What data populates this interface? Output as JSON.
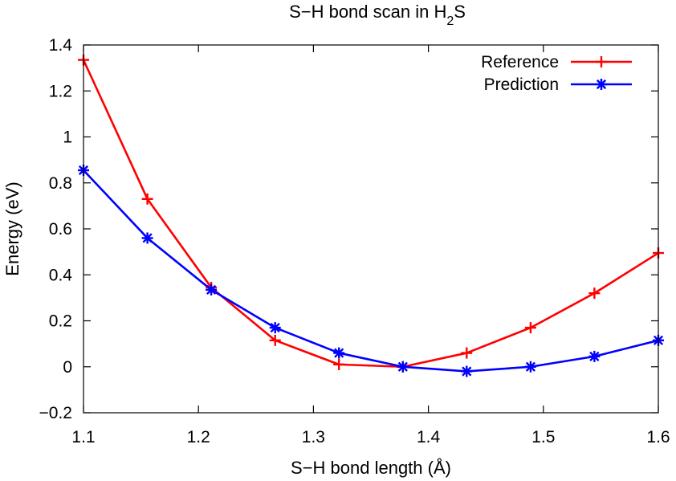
{
  "chart_data": {
    "type": "line",
    "title_main": "S−H bond scan in H",
    "title_sub": "2",
    "title_tail": "S",
    "xlabel": "S−H bond length (Å)",
    "ylabel": "Energy (eV)",
    "xlim": [
      1.1,
      1.6
    ],
    "ylim": [
      -0.2,
      1.4
    ],
    "xticks": [
      1.1,
      1.2,
      1.3,
      1.4,
      1.5,
      1.6
    ],
    "xtick_labels": [
      "1.1",
      "1.2",
      "1.3",
      "1.4",
      "1.5",
      "1.6"
    ],
    "yticks": [
      -0.2,
      0,
      0.2,
      0.4,
      0.6,
      0.8,
      1,
      1.2,
      1.4
    ],
    "ytick_labels": [
      "−0.2",
      "0",
      "0.2",
      "0.4",
      "0.6",
      "0.8",
      "1",
      "1.2",
      "1.4"
    ],
    "grid": false,
    "legend_position": "top-right",
    "x": [
      1.1,
      1.1556,
      1.2111,
      1.2667,
      1.3222,
      1.3778,
      1.4333,
      1.4889,
      1.5444,
      1.6
    ],
    "series": [
      {
        "name": "Reference",
        "color": "#ff0000",
        "marker": "plus",
        "values": [
          1.335,
          0.73,
          0.345,
          0.115,
          0.01,
          0.0,
          0.06,
          0.17,
          0.32,
          0.495
        ]
      },
      {
        "name": "Prediction",
        "color": "#0000ff",
        "marker": "asterisk",
        "values": [
          0.855,
          0.56,
          0.335,
          0.17,
          0.06,
          0.0,
          -0.02,
          0.0,
          0.045,
          0.115
        ]
      }
    ]
  }
}
